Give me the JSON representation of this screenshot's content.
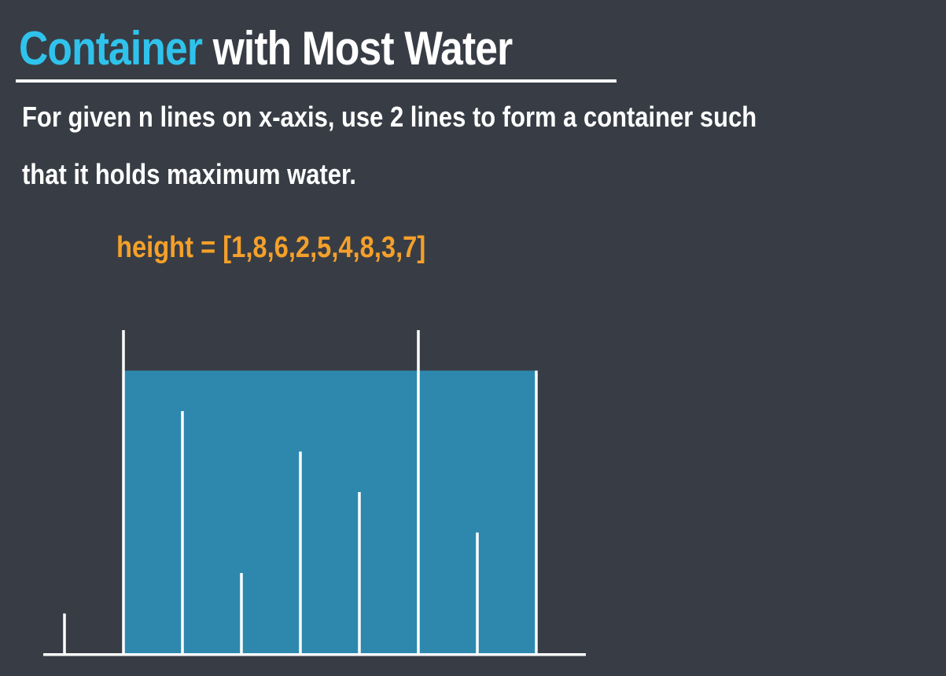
{
  "title": {
    "accent": "Container",
    "rest": "with Most Water"
  },
  "description": {
    "line1": "For given n lines on x-axis, use 2 lines to form a container such",
    "line2": "that it holds maximum water."
  },
  "array_label": "height = [1,8,6,2,5,4,8,3,7]",
  "colors": {
    "background": "#383d45",
    "title_accent": "#2fc3ec",
    "array_label": "#f5a02a",
    "water": "#2e88ae",
    "lines": "#ffffff"
  },
  "chart_data": {
    "type": "bar",
    "heights": [
      1,
      8,
      6,
      2,
      5,
      4,
      8,
      3,
      7
    ],
    "container": {
      "left_index": 1,
      "right_index": 8,
      "water_level": 7
    }
  }
}
